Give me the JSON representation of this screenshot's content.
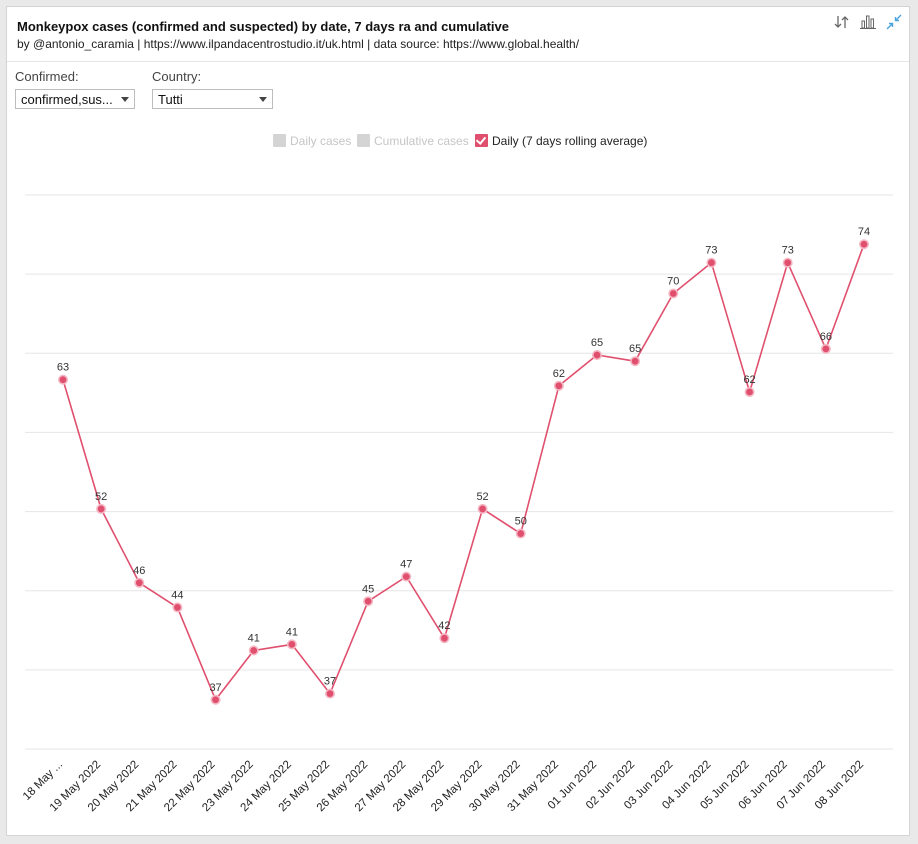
{
  "header": {
    "title": "Monkeypox cases (confirmed and suspected) by date, 7 days ra and cumulative",
    "subtitle": "by @antonio_caramia | https://www.ilpandacentrostudio.it/uk.html | data source: https://www.global.health/"
  },
  "toolbar": {
    "icons": [
      "sort-icon",
      "bar-chart-icon",
      "collapse-icon"
    ]
  },
  "filters": {
    "confirmed": {
      "label": "Confirmed:",
      "value": "confirmed,sus..."
    },
    "country": {
      "label": "Country:",
      "value": "Tutti"
    }
  },
  "legend": {
    "daily_cases": "Daily cases",
    "cumulative_cases": "Cumulative cases",
    "rolling_average": "Daily (7 days rolling average)"
  },
  "colors": {
    "series": "#e0506e",
    "marker_fill": "#e0506e",
    "marker_stroke": "#f4b7c4",
    "grid": "#e6e6e6",
    "legend_off": "#d4d4d4",
    "icon": "#666666",
    "icon_accent": "#4aa3df"
  },
  "chart_data": {
    "type": "line",
    "title": "Monkeypox cases (confirmed and suspected) by date, 7 days ra and cumulative",
    "xlabel": "",
    "ylabel": "",
    "ylim": [
      33,
      78
    ],
    "grid": true,
    "legend_position": "top-center",
    "categories": [
      "18 May ...",
      "19 May 2022",
      "20 May 2022",
      "21 May 2022",
      "22 May 2022",
      "23 May 2022",
      "24 May 2022",
      "25 May 2022",
      "26 May 2022",
      "27 May 2022",
      "28 May 2022",
      "29 May 2022",
      "30 May 2022",
      "31 May 2022",
      "01 Jun 2022",
      "02 Jun 2022",
      "03 Jun 2022",
      "04 Jun 2022",
      "05 Jun 2022",
      "06 Jun 2022",
      "07 Jun 2022",
      "08 Jun 2022"
    ],
    "series": [
      {
        "name": "Daily (7 days rolling average)",
        "values": [
          63.0,
          52.5,
          46.5,
          44.5,
          37.0,
          41.0,
          41.5,
          37.5,
          45.0,
          47.0,
          42.0,
          52.5,
          50.5,
          62.5,
          65.0,
          64.5,
          70.0,
          72.5,
          62.0,
          72.5,
          65.5,
          74.0
        ],
        "labels": [
          "63",
          "52",
          "46",
          "44",
          "37",
          "41",
          "41",
          "37",
          "45",
          "47",
          "42",
          "52",
          "50",
          "62",
          "65",
          "65",
          "70",
          "73",
          "62",
          "73",
          "66",
          "74"
        ]
      }
    ]
  }
}
